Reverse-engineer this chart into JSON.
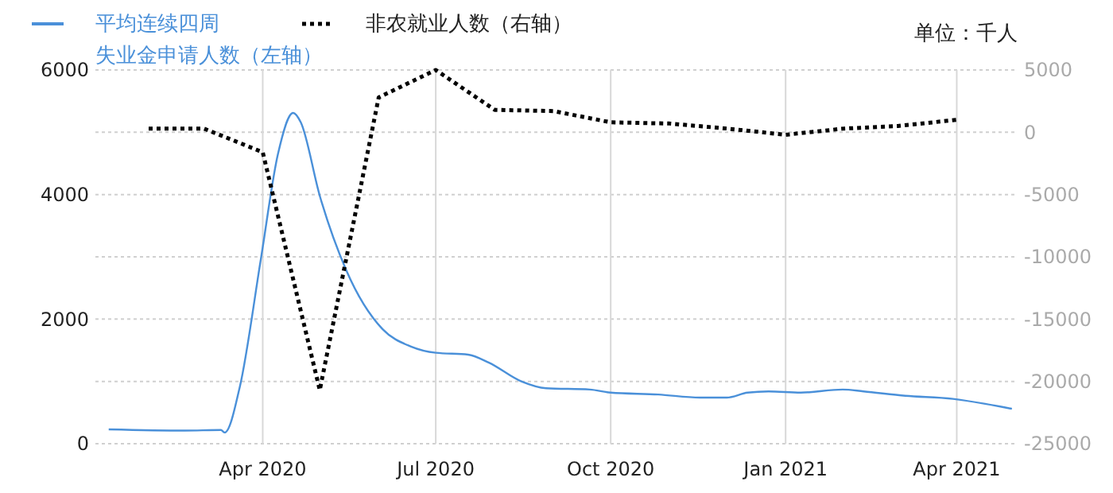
{
  "chart_data": {
    "type": "line",
    "annotations": [
      "单位：千人"
    ],
    "xlim": [
      "2020-01-04",
      "2021-05-03"
    ],
    "xticks": [
      {
        "value": "2020-04-01",
        "label": "Apr 2020"
      },
      {
        "value": "2020-07-01",
        "label": "Jul 2020"
      },
      {
        "value": "2020-10-01",
        "label": "Oct 2020"
      },
      {
        "value": "2021-01-01",
        "label": "Jan 2021"
      },
      {
        "value": "2021-04-01",
        "label": "Apr 2021"
      }
    ],
    "ylim": [
      0,
      6000
    ],
    "yticks": [
      0,
      {
        "value": 1000,
        "label": null
      },
      2000,
      {
        "value": 3000,
        "label": null
      },
      4000,
      {
        "value": 5000,
        "label": null
      },
      6000
    ],
    "y2lim": [
      -25000,
      5000
    ],
    "y2ticks": [
      -25000,
      -20000,
      -15000,
      -10000,
      -5000,
      0,
      5000
    ],
    "grid": true,
    "legend": "top left",
    "series": [
      {
        "name": "平均连续四周失业金申请人数（左轴）",
        "color": "#4a90d9",
        "line_style": "solid",
        "x": [
          "2020-01-11",
          "2020-02-20",
          "2020-03-10",
          "2020-03-12",
          "2020-03-20",
          "2020-03-31",
          "2020-04-09",
          "2020-04-17",
          "2020-04-21",
          "2020-05-01",
          "2020-05-15",
          "2020-06-03",
          "2020-06-18",
          "2020-07-01",
          "2020-07-18",
          "2020-07-29",
          "2020-08-15",
          "2020-08-28",
          "2020-09-20",
          "2020-10-01",
          "2020-10-26",
          "2020-11-17",
          "2020-12-01",
          "2020-12-12",
          "2020-12-23",
          "2021-01-09",
          "2021-01-31",
          "2021-02-11",
          "2021-03-05",
          "2021-03-30",
          "2021-04-16",
          "2021-04-30"
        ],
        "values": [
          230,
          210,
          220,
          180,
          920,
          2960,
          4650,
          5310,
          5160,
          3980,
          2780,
          1840,
          1560,
          1460,
          1430,
          1300,
          1000,
          890,
          870,
          820,
          790,
          740,
          740,
          820,
          840,
          820,
          870,
          840,
          770,
          720,
          640,
          560
        ]
      },
      {
        "name": "非农就业人数（右轴）",
        "color": "#000000",
        "axis": "y2",
        "line_style": "dotted",
        "x": [
          "2020-02-01",
          "2020-03-01",
          "2020-04-01",
          "2020-05-01",
          "2020-06-01",
          "2020-07-01",
          "2020-08-01",
          "2020-09-01",
          "2020-10-01",
          "2020-11-01",
          "2020-12-01",
          "2021-01-01",
          "2021-02-01",
          "2021-03-01",
          "2021-04-01"
        ],
        "values": [
          300,
          300,
          -1600,
          -20700,
          2800,
          5000,
          1800,
          1700,
          800,
          700,
          300,
          -200,
          300,
          500,
          1000
        ]
      }
    ]
  }
}
